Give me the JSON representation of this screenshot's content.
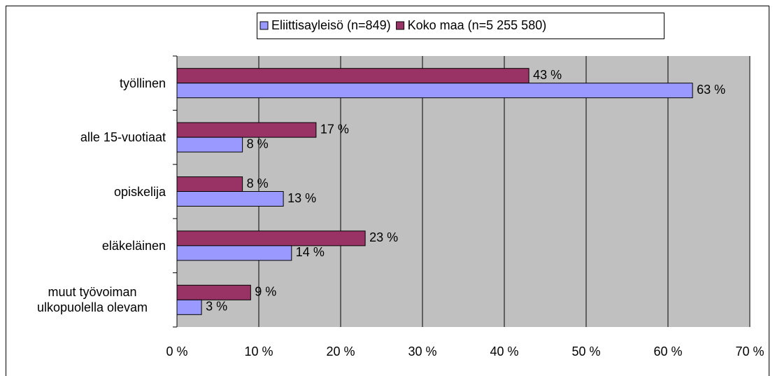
{
  "chart_data": {
    "type": "bar",
    "orientation": "horizontal",
    "categories": [
      "työllinen",
      "alle 15-vuotiaat",
      "opiskelija",
      "eläkeläinen",
      "muut työvoiman ulkopuolella olevam"
    ],
    "series": [
      {
        "name": "Eliittisayleisö (n=849)",
        "color": "#9999ff",
        "values": [
          63,
          8,
          13,
          14,
          3
        ],
        "value_labels": [
          "63 %",
          "8 %",
          "13 %",
          "14 %",
          "3 %"
        ]
      },
      {
        "name": "Koko maa (n=5 255 580)",
        "color": "#993366",
        "values": [
          43,
          17,
          8,
          23,
          9
        ],
        "value_labels": [
          "43 %",
          "17 %",
          "8 %",
          "23 %",
          "9 %"
        ]
      }
    ],
    "xlim": [
      0,
      70
    ],
    "xticks": [
      {
        "value": 0,
        "label": "0 %"
      },
      {
        "value": 10,
        "label": "10 %"
      },
      {
        "value": 20,
        "label": "20 %"
      },
      {
        "value": 30,
        "label": "30 %"
      },
      {
        "value": 40,
        "label": "40 %"
      },
      {
        "value": 50,
        "label": "50 %"
      },
      {
        "value": 60,
        "label": "60 %"
      },
      {
        "value": 70,
        "label": "70 %"
      }
    ],
    "grid": true,
    "legend": "top"
  }
}
